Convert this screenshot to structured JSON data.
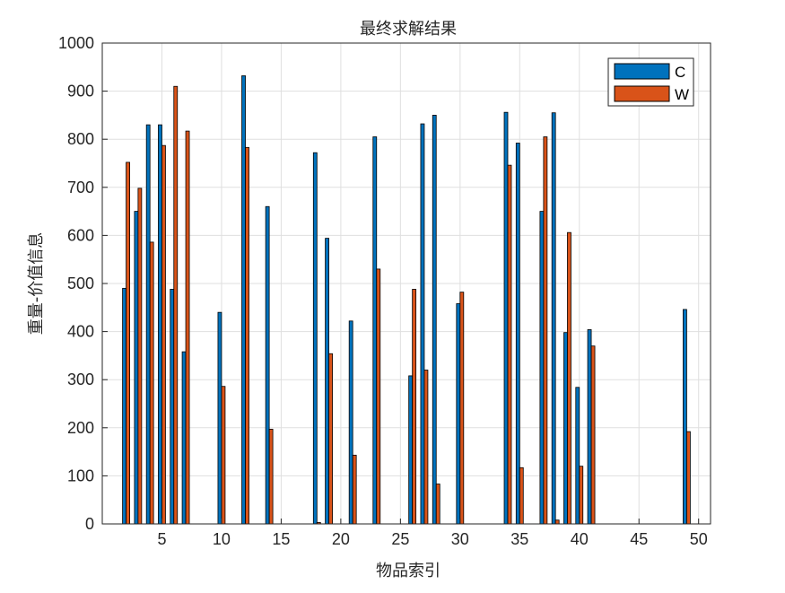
{
  "chart_data": {
    "type": "bar",
    "title": "最终求解结果",
    "xlabel": "物品索引",
    "ylabel": "重量-价值信息",
    "xlim": [
      0,
      51
    ],
    "ylim": [
      0,
      1000
    ],
    "xticks": [
      5,
      10,
      15,
      20,
      25,
      30,
      35,
      40,
      45,
      50
    ],
    "yticks": [
      0,
      100,
      200,
      300,
      400,
      500,
      600,
      700,
      800,
      900,
      1000
    ],
    "grid": true,
    "legend_position": "top-right",
    "x": [
      1,
      2,
      3,
      4,
      5,
      6,
      7,
      8,
      9,
      10,
      11,
      12,
      13,
      14,
      15,
      16,
      17,
      18,
      19,
      20,
      21,
      22,
      23,
      24,
      25,
      26,
      27,
      28,
      29,
      30,
      31,
      32,
      33,
      34,
      35,
      36,
      37,
      38,
      39,
      40,
      41,
      42,
      43,
      44,
      45,
      46,
      47,
      48,
      49,
      50
    ],
    "series": [
      {
        "name": "C",
        "color": "#0072BD",
        "values": [
          0,
          490,
          650,
          830,
          830,
          488,
          358,
          0,
          0,
          440,
          0,
          932,
          0,
          660,
          0,
          0,
          0,
          772,
          594,
          0,
          422,
          0,
          805,
          0,
          0,
          308,
          832,
          850,
          0,
          458,
          0,
          0,
          0,
          856,
          792,
          0,
          650,
          855,
          398,
          284,
          404,
          0,
          0,
          0,
          0,
          0,
          0,
          0,
          446,
          0
        ]
      },
      {
        "name": "W",
        "color": "#D95319",
        "values": [
          0,
          752,
          698,
          586,
          787,
          910,
          817,
          0,
          0,
          286,
          0,
          783,
          0,
          197,
          0,
          0,
          0,
          3,
          354,
          0,
          143,
          0,
          530,
          0,
          0,
          488,
          320,
          83,
          0,
          482,
          0,
          0,
          0,
          746,
          117,
          0,
          805,
          8,
          606,
          120,
          370,
          0,
          0,
          0,
          0,
          0,
          0,
          0,
          192,
          0
        ]
      }
    ]
  }
}
